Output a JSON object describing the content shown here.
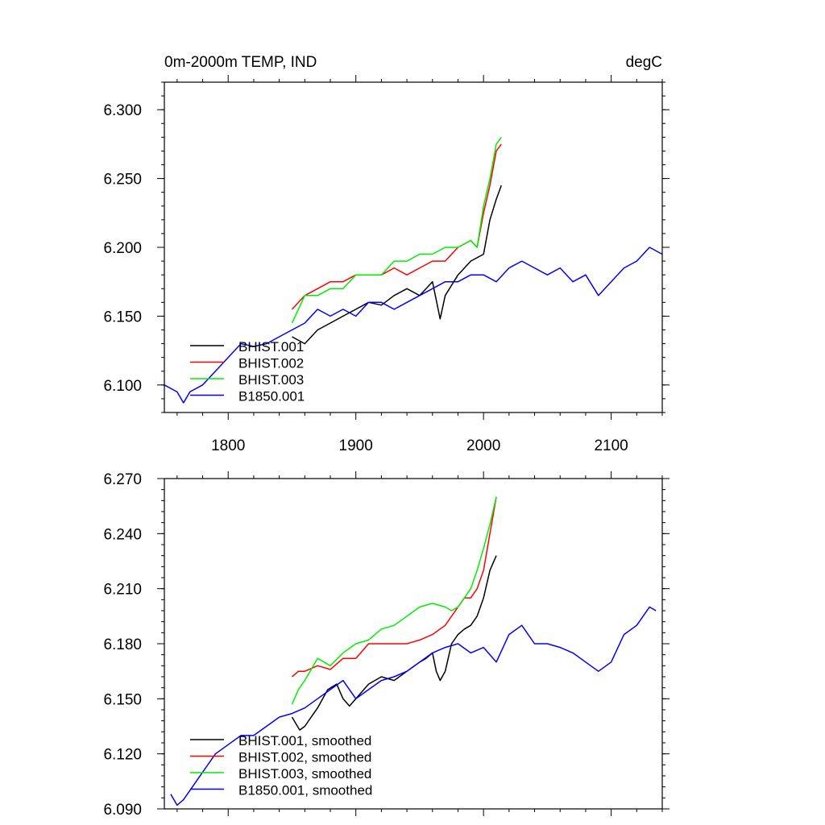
{
  "chart_data": [
    {
      "type": "line",
      "title": "0m-2000m TEMP, IND",
      "units": "degC",
      "xlim": [
        1750,
        2140
      ],
      "ylim": [
        6.08,
        6.32
      ],
      "xticks": [
        1800,
        1900,
        2000,
        2100
      ],
      "xtick_labels": [
        "1800",
        "1900",
        "2000",
        "2100"
      ],
      "yticks": [
        6.1,
        6.15,
        6.2,
        6.25,
        6.3
      ],
      "ytick_labels": [
        "6.100",
        "6.150",
        "6.200",
        "6.250",
        "6.300"
      ],
      "legend_position": "bottom-left",
      "series": [
        {
          "name": "BHIST.001",
          "color": "#000000",
          "x": [
            1850,
            1860,
            1870,
            1880,
            1890,
            1900,
            1910,
            1920,
            1930,
            1940,
            1950,
            1960,
            1966,
            1970,
            1980,
            1990,
            2000,
            2005,
            2010,
            2014
          ],
          "y": [
            6.135,
            6.13,
            6.14,
            6.145,
            6.15,
            6.155,
            6.16,
            6.158,
            6.165,
            6.17,
            6.165,
            6.175,
            6.148,
            6.165,
            6.18,
            6.19,
            6.195,
            6.22,
            6.235,
            6.245
          ]
        },
        {
          "name": "BHIST.002",
          "color": "#ff0000",
          "x": [
            1850,
            1860,
            1870,
            1880,
            1890,
            1900,
            1910,
            1920,
            1930,
            1940,
            1950,
            1960,
            1970,
            1980,
            1990,
            1995,
            2000,
            2005,
            2010,
            2014
          ],
          "y": [
            6.155,
            6.165,
            6.17,
            6.175,
            6.175,
            6.18,
            6.18,
            6.18,
            6.185,
            6.18,
            6.185,
            6.19,
            6.19,
            6.2,
            6.205,
            6.2,
            6.225,
            6.245,
            6.27,
            6.275
          ]
        },
        {
          "name": "BHIST.003",
          "color": "#00ee00",
          "x": [
            1850,
            1860,
            1870,
            1880,
            1890,
            1900,
            1910,
            1920,
            1930,
            1940,
            1950,
            1960,
            1970,
            1980,
            1990,
            1995,
            2000,
            2005,
            2010,
            2014
          ],
          "y": [
            6.145,
            6.165,
            6.165,
            6.17,
            6.17,
            6.18,
            6.18,
            6.18,
            6.19,
            6.19,
            6.195,
            6.195,
            6.2,
            6.2,
            6.205,
            6.2,
            6.23,
            6.25,
            6.275,
            6.28
          ]
        },
        {
          "name": "B1850.001",
          "color": "#0000ff",
          "x": [
            1750,
            1760,
            1765,
            1770,
            1780,
            1790,
            1800,
            1810,
            1820,
            1830,
            1840,
            1850,
            1860,
            1870,
            1880,
            1890,
            1900,
            1910,
            1920,
            1930,
            1940,
            1950,
            1960,
            1970,
            1980,
            1990,
            2000,
            2010,
            2020,
            2030,
            2040,
            2050,
            2060,
            2070,
            2080,
            2090,
            2100,
            2110,
            2120,
            2130,
            2140
          ],
          "y": [
            6.1,
            6.095,
            6.087,
            6.095,
            6.1,
            6.11,
            6.12,
            6.13,
            6.128,
            6.13,
            6.135,
            6.14,
            6.145,
            6.155,
            6.15,
            6.155,
            6.15,
            6.16,
            6.16,
            6.155,
            6.16,
            6.165,
            6.17,
            6.175,
            6.175,
            6.18,
            6.18,
            6.175,
            6.185,
            6.19,
            6.185,
            6.18,
            6.185,
            6.175,
            6.18,
            6.165,
            6.175,
            6.185,
            6.19,
            6.2,
            6.195
          ]
        }
      ]
    },
    {
      "type": "line",
      "xlim": [
        1750,
        2140
      ],
      "ylim": [
        6.09,
        6.27
      ],
      "xticks": [
        1800,
        1900,
        2000,
        2100
      ],
      "yticks": [
        6.09,
        6.12,
        6.15,
        6.18,
        6.21,
        6.24,
        6.27
      ],
      "ytick_labels": [
        "6.090",
        "6.120",
        "6.150",
        "6.180",
        "6.210",
        "6.240",
        "6.270"
      ],
      "legend_position": "bottom-left",
      "series": [
        {
          "name": "BHIST.001, smoothed",
          "color": "#000000",
          "x": [
            1850,
            1856,
            1860,
            1865,
            1870,
            1878,
            1885,
            1890,
            1895,
            1900,
            1910,
            1920,
            1930,
            1940,
            1946,
            1950,
            1955,
            1960,
            1963,
            1966,
            1970,
            1975,
            1980,
            1985,
            1990,
            1995,
            2000,
            2005,
            2010
          ],
          "y": [
            6.14,
            6.133,
            6.135,
            6.14,
            6.145,
            6.155,
            6.158,
            6.15,
            6.146,
            6.15,
            6.158,
            6.162,
            6.16,
            6.165,
            6.168,
            6.17,
            6.172,
            6.175,
            6.165,
            6.16,
            6.165,
            6.18,
            6.185,
            6.188,
            6.19,
            6.195,
            6.205,
            6.22,
            6.228
          ]
        },
        {
          "name": "BHIST.002, smoothed",
          "color": "#ff0000",
          "x": [
            1850,
            1855,
            1860,
            1870,
            1880,
            1890,
            1900,
            1910,
            1920,
            1930,
            1940,
            1950,
            1960,
            1970,
            1975,
            1980,
            1985,
            1990,
            1995,
            2000,
            2005,
            2010
          ],
          "y": [
            6.162,
            6.165,
            6.165,
            6.168,
            6.166,
            6.172,
            6.172,
            6.18,
            6.18,
            6.18,
            6.18,
            6.182,
            6.185,
            6.19,
            6.195,
            6.2,
            6.205,
            6.205,
            6.21,
            6.22,
            6.24,
            6.26
          ]
        },
        {
          "name": "BHIST.003, smoothed",
          "color": "#00ee00",
          "x": [
            1850,
            1855,
            1860,
            1870,
            1880,
            1890,
            1900,
            1910,
            1920,
            1930,
            1940,
            1950,
            1960,
            1970,
            1975,
            1980,
            1985,
            1990,
            1995,
            2000,
            2005,
            2010
          ],
          "y": [
            6.147,
            6.155,
            6.16,
            6.172,
            6.168,
            6.175,
            6.18,
            6.182,
            6.188,
            6.19,
            6.195,
            6.2,
            6.202,
            6.2,
            6.198,
            6.2,
            6.205,
            6.21,
            6.22,
            6.232,
            6.245,
            6.26
          ]
        },
        {
          "name": "B1850.001, smoothed",
          "color": "#0000ff",
          "x": [
            1755,
            1760,
            1765,
            1770,
            1780,
            1785,
            1790,
            1800,
            1810,
            1820,
            1830,
            1840,
            1850,
            1860,
            1870,
            1880,
            1890,
            1900,
            1910,
            1920,
            1930,
            1940,
            1950,
            1960,
            1970,
            1980,
            1990,
            2000,
            2010,
            2020,
            2030,
            2040,
            2050,
            2060,
            2070,
            2080,
            2090,
            2100,
            2110,
            2120,
            2130,
            2135
          ],
          "y": [
            6.098,
            6.092,
            6.095,
            6.1,
            6.11,
            6.115,
            6.12,
            6.125,
            6.13,
            6.13,
            6.135,
            6.14,
            6.142,
            6.145,
            6.15,
            6.155,
            6.16,
            6.15,
            6.155,
            6.16,
            6.162,
            6.165,
            6.17,
            6.175,
            6.178,
            6.18,
            6.175,
            6.178,
            6.17,
            6.185,
            6.19,
            6.18,
            6.18,
            6.178,
            6.175,
            6.17,
            6.165,
            6.17,
            6.185,
            6.19,
            6.2,
            6.198
          ]
        }
      ]
    }
  ]
}
